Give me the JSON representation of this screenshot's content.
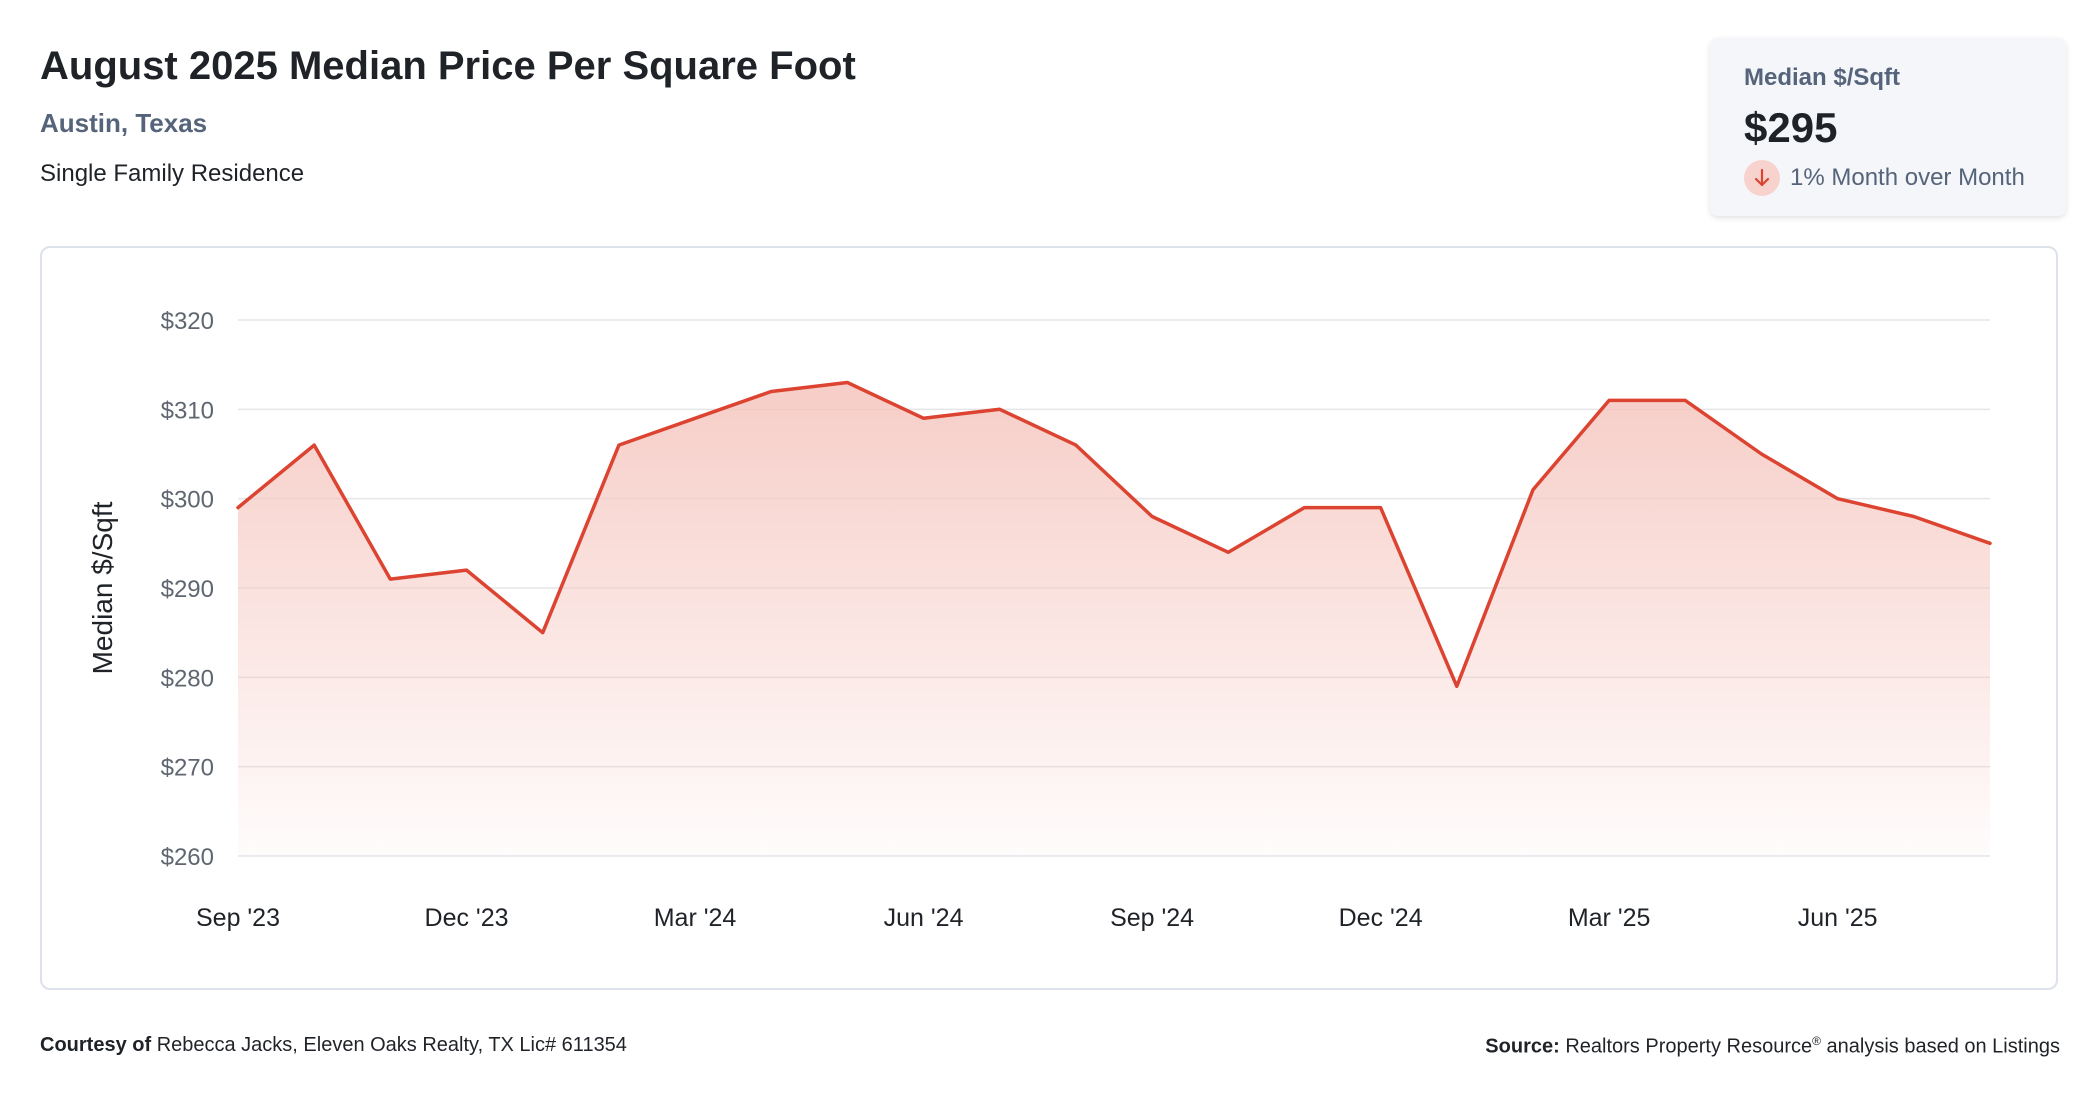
{
  "header": {
    "title": "August 2025 Median Price Per Square Foot",
    "location": "Austin, Texas",
    "property_type": "Single Family Residence"
  },
  "stat_card": {
    "label": "Median $/Sqft",
    "value": "$295",
    "change_text": "1% Month over Month",
    "change_direction": "down"
  },
  "footer": {
    "courtesy_label": "Courtesy of",
    "courtesy_text": "Rebecca Jacks, Eleven Oaks Realty, TX Lic# 611354",
    "source_label": "Source:",
    "source_name": "Realtors Property Resource",
    "source_mark": "®",
    "source_text": "analysis based on Listings"
  },
  "colors": {
    "line": "#dc4431",
    "fill_top": "#f5c4bd",
    "grid": "#e3e5e8",
    "axis_text": "#5f6670",
    "accent_text": "#55647a"
  },
  "chart_data": {
    "type": "area",
    "ylabel": "Median $/Sqft",
    "xlabel": "",
    "ylim": [
      260,
      320
    ],
    "yticks": [
      320,
      310,
      300,
      290,
      280,
      270,
      260
    ],
    "ytick_prefix": "$",
    "grid": true,
    "x": [
      "Sep '23",
      "Oct '23",
      "Nov '23",
      "Dec '23",
      "Jan '24",
      "Feb '24",
      "Mar '24",
      "Apr '24",
      "May '24",
      "Jun '24",
      "Jul '24",
      "Aug '24",
      "Sep '24",
      "Oct '24",
      "Nov '24",
      "Dec '24",
      "Jan '25",
      "Feb '25",
      "Mar '25",
      "Apr '25",
      "May '25",
      "Jun '25",
      "Jul '25",
      "Aug '25"
    ],
    "xtick_labels": [
      "Sep '23",
      "Dec '23",
      "Mar '24",
      "Jun '24",
      "Sep '24",
      "Dec '24",
      "Mar '25",
      "Jun '25"
    ],
    "series": [
      {
        "name": "Median $/Sqft",
        "values": [
          299,
          306,
          291,
          292,
          285,
          306,
          309,
          312,
          313,
          309,
          310,
          306,
          298,
          294,
          299,
          299,
          279,
          301,
          311,
          311,
          305,
          300,
          298,
          295
        ]
      }
    ]
  }
}
